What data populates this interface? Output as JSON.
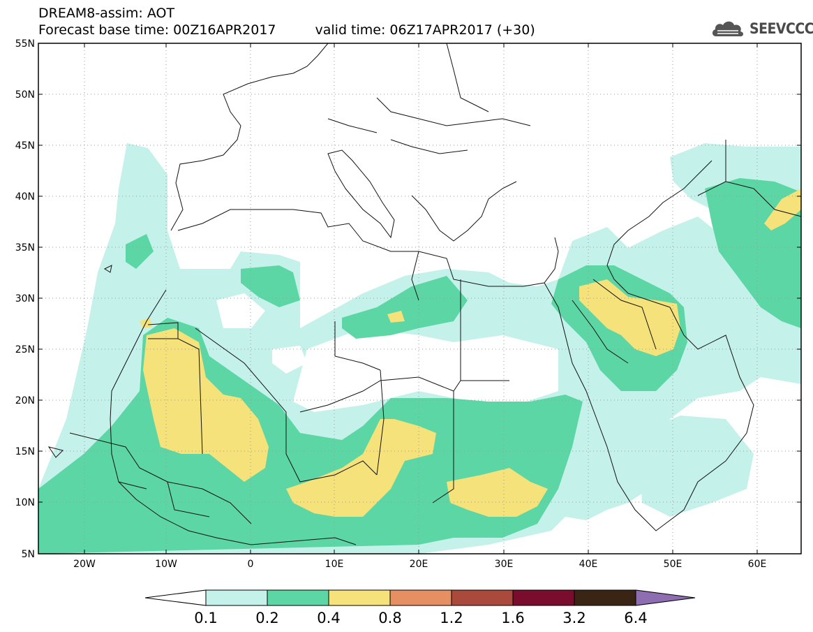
{
  "header": {
    "title": "DREAM8-assim: AOT",
    "base_time": "Forecast base time: 00Z16APR2017",
    "valid_time": "valid time: 06Z17APR2017 (+30)"
  },
  "logo": {
    "text": "SEEVCCC",
    "icon": "cloud-logo-icon"
  },
  "map": {
    "variable": "AOT",
    "lat_labels": [
      "55N",
      "50N",
      "45N",
      "40N",
      "35N",
      "30N",
      "25N",
      "20N",
      "15N",
      "10N",
      "5N"
    ],
    "lon_labels": [
      "20W",
      "10W",
      "0",
      "10E",
      "20E",
      "30E",
      "40E",
      "50E",
      "60E"
    ]
  },
  "colorbar": {
    "levels": [
      "0.1",
      "0.2",
      "0.4",
      "0.8",
      "1.2",
      "1.6",
      "3.2",
      "6.4"
    ],
    "colors": [
      "#ffffff",
      "#c4f2ea",
      "#5cd6a4",
      "#f5e27a",
      "#e58f63",
      "#a94a3c",
      "#7a0c2e",
      "#3a2514",
      "#8e6db1"
    ]
  }
}
